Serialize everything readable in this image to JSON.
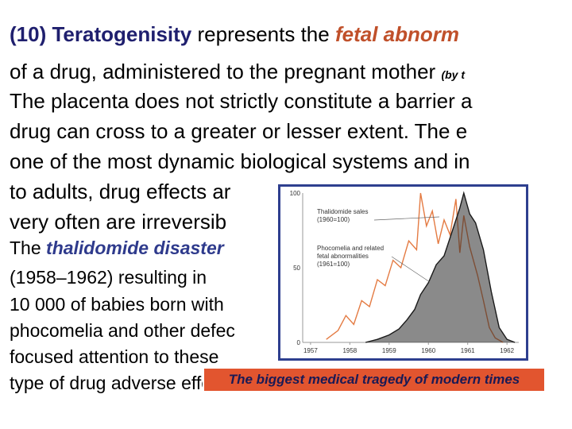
{
  "slide": {
    "heading_number": "(10)",
    "heading_term": "Teratogenisity",
    "heading_rest": "represents the",
    "heading_accent": "fetal abnorm",
    "line2_text": "of a drug, administered to the pregnant mother",
    "line2_note": "(by t",
    "line3": "The placenta does not strictly constitute a barrier a",
    "line4": "drug  can cross to a greater or lesser extent. The e",
    "line5": "one of the most dynamic biological systems and in",
    "line6": "to adults, drug effects ar",
    "line7": "very often are irreversib",
    "line8_pre": "The",
    "line8_term": "thalidomide disaster",
    "line9": "(1958–1962) resulting in",
    "line10": "10 000 of babies born with",
    "line11": "phocomelia and other defec",
    "line12": "focused attention to these",
    "line13": "type of drug adverse effe"
  },
  "banner": {
    "text": "The biggest medical tragedy of modern times",
    "color": "#e2552f"
  },
  "chart_data": {
    "type": "line",
    "title": "",
    "xlabel": "",
    "ylabel": "",
    "x_ticks": [
      "1957",
      "1958",
      "1959",
      "1960",
      "1961",
      "1962"
    ],
    "y_ticks": [
      "0",
      "50",
      "100"
    ],
    "ylim": [
      0,
      100
    ],
    "xlim": [
      1957,
      1962.5
    ],
    "annotations": [
      {
        "text": "Thalidomide sales\n(1960=100)"
      },
      {
        "text": "Phocomelia and related\nfetal abnormalities\n(1961=100)"
      }
    ],
    "series": [
      {
        "name": "Thalidomide sales (1960=100)",
        "color": "#e47b43",
        "points": [
          [
            1957.6,
            2
          ],
          [
            1957.9,
            8
          ],
          [
            1958.1,
            18
          ],
          [
            1958.3,
            12
          ],
          [
            1958.5,
            28
          ],
          [
            1958.7,
            24
          ],
          [
            1958.9,
            42
          ],
          [
            1959.1,
            38
          ],
          [
            1959.3,
            55
          ],
          [
            1959.5,
            50
          ],
          [
            1959.7,
            68
          ],
          [
            1959.9,
            62
          ],
          [
            1960.0,
            100
          ],
          [
            1960.15,
            78
          ],
          [
            1960.3,
            88
          ],
          [
            1960.45,
            66
          ],
          [
            1960.6,
            82
          ],
          [
            1960.75,
            72
          ],
          [
            1960.9,
            96
          ],
          [
            1961.0,
            60
          ],
          [
            1961.1,
            85
          ],
          [
            1961.25,
            64
          ],
          [
            1961.45,
            45
          ],
          [
            1961.6,
            28
          ],
          [
            1961.75,
            10
          ],
          [
            1961.9,
            3
          ],
          [
            1962.1,
            0
          ]
        ]
      },
      {
        "name": "Phocomelia and related fetal abnormalities (1961=100)",
        "color": "#1a1a1a",
        "points": [
          [
            1958.6,
            0
          ],
          [
            1958.9,
            2
          ],
          [
            1959.2,
            5
          ],
          [
            1959.45,
            9
          ],
          [
            1959.65,
            15
          ],
          [
            1959.85,
            22
          ],
          [
            1960.0,
            32
          ],
          [
            1960.2,
            40
          ],
          [
            1960.4,
            52
          ],
          [
            1960.6,
            58
          ],
          [
            1960.75,
            70
          ],
          [
            1960.9,
            82
          ],
          [
            1961.0,
            90
          ],
          [
            1961.1,
            100
          ],
          [
            1961.25,
            86
          ],
          [
            1961.4,
            80
          ],
          [
            1961.6,
            62
          ],
          [
            1961.8,
            34
          ],
          [
            1962.0,
            10
          ],
          [
            1962.2,
            2
          ],
          [
            1962.4,
            0
          ]
        ]
      }
    ]
  }
}
